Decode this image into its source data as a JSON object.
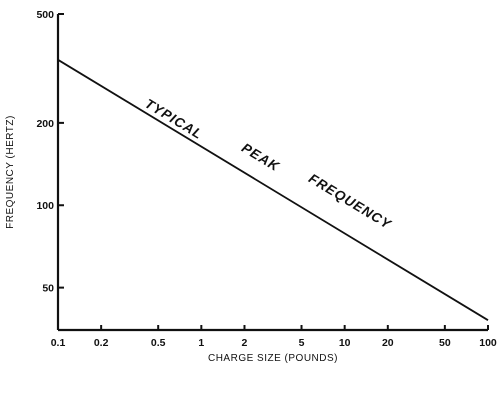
{
  "chart_data": {
    "type": "line",
    "title": "",
    "xlabel": "CHARGE SIZE (POUNDS)",
    "ylabel": "FREQUENCY (HERTZ)",
    "x_scale": "log",
    "y_scale": "log",
    "xlim": [
      0.1,
      100
    ],
    "ylim": [
      35,
      500
    ],
    "grid": false,
    "x_ticks": [
      {
        "value": 0.1,
        "label": "0.1"
      },
      {
        "value": 0.2,
        "label": "0.2"
      },
      {
        "value": 0.5,
        "label": "0.5"
      },
      {
        "value": 1,
        "label": "1"
      },
      {
        "value": 2,
        "label": "2"
      },
      {
        "value": 5,
        "label": "5"
      },
      {
        "value": 10,
        "label": "10"
      },
      {
        "value": 20,
        "label": "20"
      },
      {
        "value": 50,
        "label": "50"
      },
      {
        "value": 100,
        "label": "100"
      }
    ],
    "y_ticks": [
      {
        "value": 50,
        "label": "50"
      },
      {
        "value": 100,
        "label": "100"
      },
      {
        "value": 200,
        "label": "200"
      },
      {
        "value": 500,
        "label": "500"
      }
    ],
    "series": [
      {
        "x": [
          0.1,
          100
        ],
        "y": [
          340,
          38
        ]
      }
    ],
    "annotations": [
      {
        "text": "TYPICAL",
        "x": 0.62,
        "y": 200
      },
      {
        "text": "PEAK",
        "x": 2.5,
        "y": 145
      },
      {
        "text": "FREQUENCY",
        "x": 10.5,
        "y": 100
      }
    ]
  }
}
